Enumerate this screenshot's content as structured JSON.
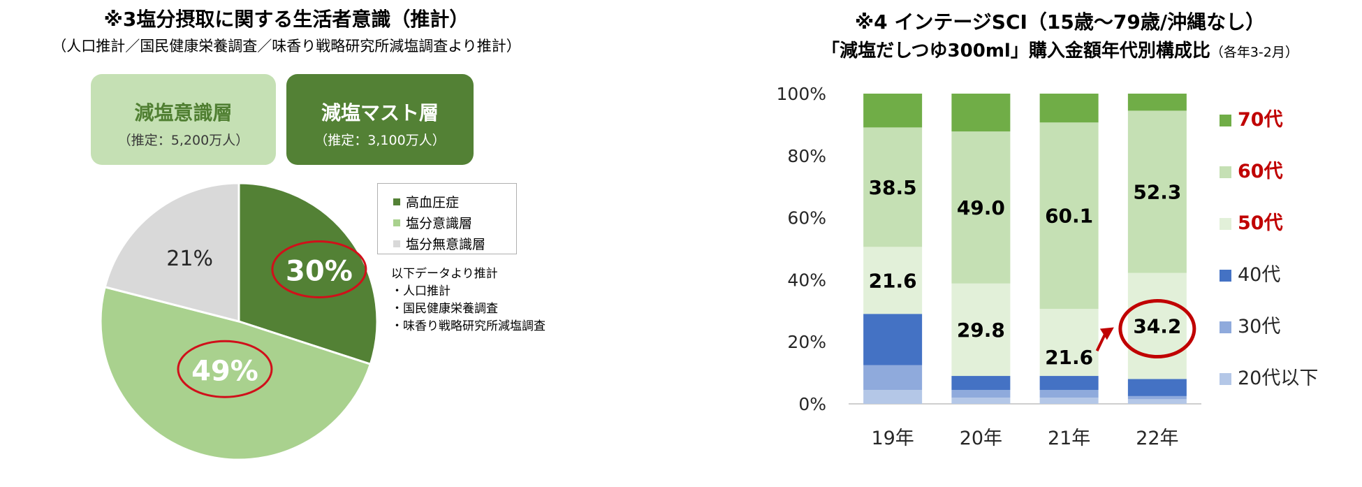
{
  "left_panel": {
    "title": "※3塩分摂取に関する生活者意識（推計）",
    "subtitle": "（人口推計／国民健康栄養調査／味香り戦略研究所減塩調査より推計）",
    "box_aware": {
      "title": "減塩意識層",
      "sub": "（推定：5,200万人）"
    },
    "box_must": {
      "title": "減塩マスト層",
      "sub": "（推定：3,100万人）"
    },
    "notes": [
      "以下データより推計",
      "・人口推計",
      "・国民健康栄養調査",
      "・味香り戦略研究所減塩調査"
    ]
  },
  "right_panel": {
    "title": "※4  インテージSCI（15歳～79歳/沖縄なし）",
    "subtitle_main": "「減塩だしつゆ300ml」購入金額年代別構成比",
    "subtitle_paren": "（各年3-2月）"
  },
  "chart_data": [
    {
      "type": "pie",
      "labels": [
        "高血圧症",
        "塩分意識層",
        "塩分無意識層"
      ],
      "values": [
        30,
        49,
        21
      ],
      "data_labels": [
        "30%",
        "49%",
        "21%"
      ],
      "colors": [
        "#538135",
        "#a9d18e",
        "#d9d9d9"
      ],
      "legend_position": "right"
    },
    {
      "type": "bar",
      "stacked": true,
      "categories": [
        "19年",
        "20年",
        "21年",
        "22年"
      ],
      "yticks": [
        "0%",
        "20%",
        "40%",
        "60%",
        "80%",
        "100%"
      ],
      "ylim": [
        0,
        100
      ],
      "series": [
        {
          "name": "20代以下",
          "color": "#b4c7e7",
          "values": [
            4.5,
            2.0,
            2.0,
            1.5
          ]
        },
        {
          "name": "30代",
          "color": "#8faadc",
          "values": [
            8.0,
            2.5,
            2.5,
            1.0
          ]
        },
        {
          "name": "40代",
          "color": "#4472c4",
          "values": [
            16.5,
            4.5,
            4.5,
            5.5
          ]
        },
        {
          "name": "50代",
          "color": "#e2f0d9",
          "values": [
            21.6,
            29.8,
            21.6,
            34.2
          ]
        },
        {
          "name": "60代",
          "color": "#c5e0b4",
          "values": [
            38.5,
            49.0,
            60.1,
            52.3
          ]
        },
        {
          "name": "70代",
          "color": "#70ad47",
          "values": [
            10.9,
            12.2,
            9.3,
            5.5
          ]
        }
      ],
      "data_labels": [
        {
          "series": "50代",
          "category": "19年",
          "text": "21.6"
        },
        {
          "series": "50代",
          "category": "20年",
          "text": "29.8"
        },
        {
          "series": "50代",
          "category": "21年",
          "text": "21.6"
        },
        {
          "series": "50代",
          "category": "22年",
          "text": "34.2"
        },
        {
          "series": "60代",
          "category": "19年",
          "text": "38.5"
        },
        {
          "series": "60代",
          "category": "20年",
          "text": "49.0"
        },
        {
          "series": "60代",
          "category": "21年",
          "text": "60.1"
        },
        {
          "series": "60代",
          "category": "22年",
          "text": "52.3"
        }
      ],
      "legend_highlight_color": "#c00000",
      "legend_position": "right"
    }
  ]
}
